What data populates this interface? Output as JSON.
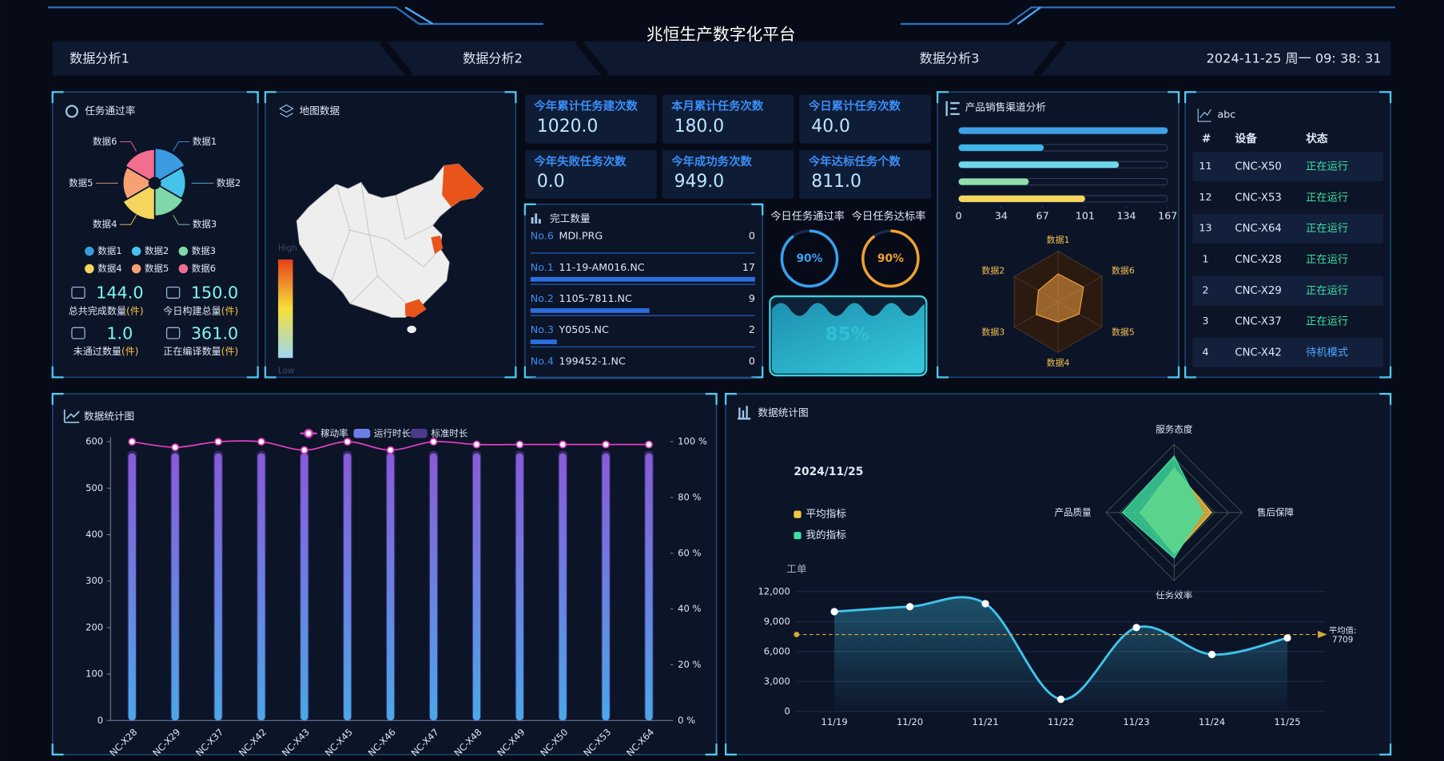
{
  "header": {
    "title": "兆恒生产数字化平台",
    "tabs": [
      "数据分析1",
      "数据分析2",
      "数据分析3"
    ],
    "datetime": "2024-11-25 周一 09: 38: 31"
  },
  "task_stats": [
    {
      "value": "144.0",
      "label": "总共完成数量",
      "unit": "(件)"
    },
    {
      "value": "150.0",
      "label": "今日构建总量",
      "unit": "(件)"
    },
    {
      "value": "1.0",
      "label": "未通过数量",
      "unit": "(件)"
    },
    {
      "value": "361.0",
      "label": "正在编译数量",
      "unit": "(件)"
    }
  ],
  "map": {
    "title": "地图数据",
    "high": "High",
    "low": "Low"
  },
  "kpis": [
    {
      "label": "今年累计任务建次数",
      "value": "1020.0"
    },
    {
      "label": "本月累计任务次数",
      "value": "180.0"
    },
    {
      "label": "今日累计任务次数",
      "value": "40.0"
    },
    {
      "label": "今年失败任务次数",
      "value": "0.0"
    },
    {
      "label": "今年成功务次数",
      "value": "949.0"
    },
    {
      "label": "今年达标任务个数",
      "value": "811.0"
    }
  ],
  "table": {
    "title": "abc",
    "headers": [
      "#",
      "设备",
      "状态"
    ],
    "rows": [
      [
        "11",
        "CNC-X50",
        "正在运行"
      ],
      [
        "12",
        "CNC-X53",
        "正在运行"
      ],
      [
        "13",
        "CNC-X64",
        "正在运行"
      ],
      [
        "1",
        "CNC-X28",
        "正在运行"
      ],
      [
        "2",
        "CNC-X29",
        "正在运行"
      ],
      [
        "3",
        "CNC-X37",
        "正在运行"
      ],
      [
        "4",
        "CNC-X42",
        "待机模式"
      ]
    ],
    "status_colors": {
      "正在运行": "#3ee0a0",
      "待机模式": "#4aa8ff"
    }
  },
  "chart_data": [
    {
      "type": "rose",
      "title": "任务通过率",
      "categories": [
        "数据1",
        "数据2",
        "数据3",
        "数据4",
        "数据5",
        "数据6"
      ],
      "values": [
        36,
        32,
        34,
        38,
        33,
        35
      ],
      "colors": [
        "#3a9be0",
        "#45c3ea",
        "#7fd8a8",
        "#f5d55c",
        "#f6a073",
        "#f26d8e"
      ]
    },
    {
      "type": "progress",
      "title": "完工数量",
      "ranks": [
        "No.6",
        "No.1",
        "No.2",
        "No.3",
        "No.4"
      ],
      "categories": [
        "MDI.PRG",
        "11-19-AM016.NC",
        "1105-7811.NC",
        "Y0505.NC",
        "199452-1.NC"
      ],
      "values": [
        0,
        17,
        9,
        2,
        0
      ],
      "color": "#2a6fe0"
    },
    {
      "type": "gauge",
      "title": "今日任务通过率",
      "value": 90,
      "value_label": "90%",
      "color": "#3aa0f0"
    },
    {
      "type": "gauge",
      "title": "今日任务达标率",
      "value": 90,
      "value_label": "90%",
      "color": "#f0a030"
    },
    {
      "type": "liquid",
      "value": 85,
      "value_label": "85%",
      "color": "#2fc0d8"
    },
    {
      "type": "hbar",
      "title": "产品销售渠道分析",
      "categories": [
        null,
        null,
        null,
        null,
        null
      ],
      "values": [
        167,
        68,
        128,
        56,
        101
      ],
      "colors": [
        "#3fa0e8",
        "#3fb8e8",
        "#6fd8e8",
        "#8fe0a8",
        "#f5d55c"
      ],
      "xlim": [
        0,
        167
      ],
      "xticks": [
        0,
        34,
        67,
        101,
        134,
        167
      ]
    },
    {
      "type": "radar",
      "indicators": [
        "数据1",
        "数据2",
        "数据3",
        "数据4",
        "数据5",
        "数据6"
      ],
      "rlim": [
        0,
        100
      ],
      "series": [
        {
          "color": "#f0a040",
          "values": [
            55,
            45,
            50,
            40,
            48,
            58
          ]
        }
      ]
    },
    {
      "type": "combo",
      "title": "数据统计图",
      "categories": [
        "NC-X28",
        "NC-X29",
        "NC-X37",
        "NC-X42",
        "NC-X43",
        "NC-X45",
        "NC-X46",
        "NC-X47",
        "NC-X48",
        "NC-X49",
        "NC-X50",
        "NC-X53",
        "NC-X64"
      ],
      "series": [
        {
          "name": "稼动率",
          "type": "line",
          "axis": "y2",
          "color": "#e23fc0",
          "values": [
            100,
            98,
            100,
            100,
            97,
            100,
            97,
            100,
            99,
            99,
            99,
            99,
            99
          ]
        },
        {
          "name": "运行时长",
          "type": "bar",
          "color": "#6c7ee6",
          "values": [
            575,
            575,
            575,
            575,
            575,
            575,
            575,
            575,
            575,
            575,
            575,
            575,
            575
          ]
        },
        {
          "name": "标准时长",
          "type": "bar",
          "color": "#4b3a8c",
          "values": [
            580,
            580,
            580,
            580,
            580,
            580,
            580,
            580,
            580,
            580,
            580,
            580,
            580
          ]
        }
      ],
      "ylim": [
        0,
        600
      ],
      "yticks": [
        0,
        100,
        200,
        300,
        400,
        500,
        600
      ],
      "y2lim": [
        0,
        100
      ],
      "y2ticks": [
        {
          "value": 0,
          "label": "0 %"
        },
        {
          "value": 20,
          "label": "20 %"
        },
        {
          "value": 40,
          "label": "40 %"
        },
        {
          "value": 60,
          "label": "60 %"
        },
        {
          "value": 80,
          "label": "80 %"
        },
        {
          "value": 100,
          "label": "100 %"
        }
      ]
    },
    {
      "type": "radar",
      "title": "数据统计图",
      "subtitle": "2024/11/25",
      "indicators": [
        "服务态度",
        "售后保障",
        "任务效率",
        "产品质量"
      ],
      "rlim": [
        0,
        100
      ],
      "series": [
        {
          "name": "平均指标",
          "color": "#f5c542",
          "values": [
            65,
            55,
            60,
            50
          ]
        },
        {
          "name": "我的指标",
          "color": "#3ee0a0",
          "values": [
            83,
            42,
            67,
            76
          ]
        }
      ]
    },
    {
      "type": "line",
      "y_label": "工单",
      "categories": [
        "11/19",
        "11/20",
        "11/21",
        "11/22",
        "11/23",
        "11/24",
        "11/25"
      ],
      "values": [
        10000,
        10500,
        10800,
        1200,
        8400,
        5700,
        7363
      ],
      "color": "#3fc4ea",
      "ylim": [
        0,
        12000
      ],
      "yticks": [
        0,
        {
          "value": 3000,
          "label": "3,000"
        },
        {
          "value": 6000,
          "label": "6,000"
        },
        {
          "value": 9000,
          "label": "9,000"
        },
        {
          "value": 12000,
          "label": "12,000"
        }
      ],
      "mark_line": {
        "name": "平均值:",
        "value": 7709,
        "color": "#d4a83a"
      }
    }
  ]
}
